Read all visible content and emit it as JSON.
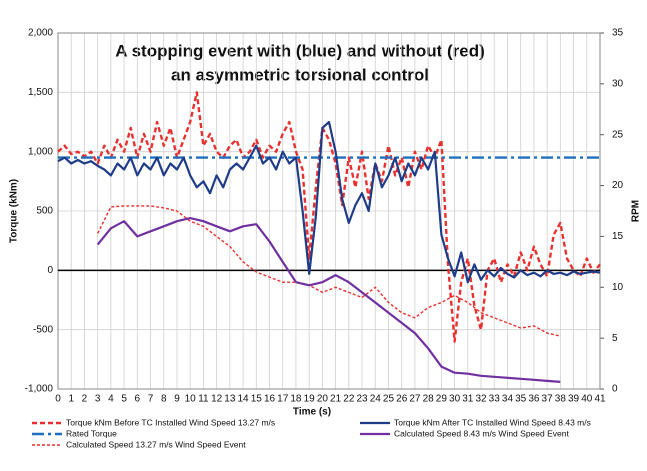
{
  "chart_data": {
    "type": "line",
    "title": [
      "A stopping event with (blue) and without (red)",
      "an asymmetric torsional control"
    ],
    "x_label": "Time (s)",
    "y_label": "Torque (kNm)",
    "y2_label": "RPM",
    "xlim": [
      0,
      41
    ],
    "xticks": [
      0,
      1,
      2,
      3,
      4,
      5,
      6,
      7,
      8,
      9,
      10,
      11,
      12,
      13,
      14,
      15,
      16,
      17,
      18,
      19,
      20,
      21,
      22,
      23,
      24,
      25,
      26,
      27,
      28,
      29,
      30,
      31,
      32,
      33,
      34,
      35,
      36,
      37,
      38,
      39,
      40,
      41
    ],
    "ylim": [
      -1000,
      2000
    ],
    "yticks": [
      {
        "value": -1000,
        "label": "-1,000"
      },
      -500,
      0,
      500,
      {
        "value": 1000,
        "label": "1,000"
      },
      {
        "value": 1500,
        "label": "1,500"
      },
      {
        "value": 2000,
        "label": "2,000"
      }
    ],
    "y2lim": [
      0,
      35
    ],
    "y2ticks": [
      0,
      5,
      10,
      15,
      20,
      25,
      30,
      35
    ],
    "grid": true,
    "series": [
      {
        "name": "Torque kNm Before TC Installed Wind Speed 13.27 m/s",
        "color": "#e8312f",
        "style": "dashed",
        "axis": "y",
        "x": [
          0,
          0.5,
          1,
          1.5,
          2,
          2.5,
          3,
          3.5,
          4,
          4.5,
          5,
          5.5,
          6,
          6.5,
          7,
          7.5,
          8,
          8.5,
          9,
          9.5,
          10,
          10.5,
          11,
          11.5,
          12,
          12.5,
          13,
          13.5,
          14,
          14.5,
          15,
          15.5,
          16,
          16.5,
          17,
          17.5,
          18,
          18.5,
          19,
          19.5,
          20,
          20.5,
          21,
          21.5,
          22,
          22.5,
          23,
          23.5,
          24,
          24.5,
          25,
          25.5,
          26,
          26.5,
          27,
          27.5,
          28,
          28.5,
          29,
          29.5,
          30,
          30.5,
          31,
          31.5,
          32,
          32.5,
          33,
          33.5,
          34,
          34.5,
          35,
          35.5,
          36,
          36.5,
          37,
          37.5,
          38,
          38.5,
          39,
          39.5,
          40,
          40.5,
          41
        ],
        "values": [
          1000,
          1050,
          980,
          1000,
          960,
          1000,
          900,
          1050,
          950,
          1100,
          1000,
          1200,
          950,
          1150,
          1000,
          1250,
          1050,
          1200,
          950,
          1100,
          1250,
          1500,
          1050,
          1150,
          1000,
          950,
          1050,
          1100,
          950,
          1000,
          1100,
          950,
          1050,
          1000,
          1150,
          1250,
          1000,
          850,
          100,
          700,
          1200,
          1100,
          900,
          550,
          950,
          700,
          1000,
          600,
          900,
          750,
          1050,
          800,
          950,
          700,
          1000,
          850,
          1050,
          950,
          1100,
          50,
          -600,
          -100,
          100,
          -300,
          -500,
          0,
          100,
          -100,
          50,
          -50,
          150,
          0,
          200,
          50,
          -50,
          300,
          400,
          100,
          0,
          -50,
          100,
          -20,
          50
        ]
      },
      {
        "name": "Rated Torque",
        "color": "#1f6fbf",
        "style": "dashdot",
        "axis": "y",
        "x": [
          0,
          41
        ],
        "values": [
          950,
          950
        ]
      },
      {
        "name": "Calculated Speed 13.27 m/s Wind Speed Event",
        "color": "#e8312f",
        "style": "thin",
        "axis": "y2",
        "x": [
          3,
          4,
          5,
          6,
          7,
          8,
          9,
          10,
          11,
          12,
          13,
          14,
          15,
          16,
          17,
          18,
          19,
          20,
          21,
          22,
          23,
          24,
          25,
          26,
          27,
          28,
          29,
          30,
          31,
          32,
          33,
          34,
          35,
          36,
          37,
          38
        ],
        "values": [
          15.3,
          17.9,
          18,
          18,
          18,
          17.8,
          17.5,
          16.5,
          16,
          15,
          14,
          12.5,
          11.5,
          11,
          10.5,
          10.5,
          10.2,
          9.5,
          10,
          9.5,
          9,
          10,
          8.5,
          7.5,
          7,
          8,
          8.5,
          9.2,
          8.5,
          7.5,
          7,
          6.5,
          6,
          6.2,
          5.5,
          5.2
        ]
      },
      {
        "name": "Torque kNm After TC Installed Wind Speed 8.43 m/s",
        "color": "#1f3c88",
        "style": "solid",
        "axis": "y",
        "x": [
          0,
          0.5,
          1,
          1.5,
          2,
          2.5,
          3,
          3.5,
          4,
          4.5,
          5,
          5.5,
          6,
          6.5,
          7,
          7.5,
          8,
          8.5,
          9,
          9.5,
          10,
          10.5,
          11,
          11.5,
          12,
          12.5,
          13,
          13.5,
          14,
          14.5,
          15,
          15.5,
          16,
          16.5,
          17,
          17.5,
          18,
          18.5,
          19,
          19.5,
          20,
          20.5,
          21,
          21.5,
          22,
          22.5,
          23,
          23.5,
          24,
          24.5,
          25,
          25.5,
          26,
          26.5,
          27,
          27.5,
          28,
          28.5,
          29,
          29.5,
          30,
          30.5,
          31,
          31.5,
          32,
          32.5,
          33,
          33.5,
          34,
          34.5,
          35,
          35.5,
          36,
          36.5,
          37,
          37.5,
          38,
          38.5,
          39,
          39.5,
          40,
          40.5,
          41
        ],
        "values": [
          920,
          950,
          900,
          930,
          900,
          920,
          880,
          850,
          800,
          900,
          850,
          950,
          800,
          900,
          850,
          950,
          800,
          900,
          850,
          950,
          800,
          700,
          750,
          650,
          800,
          700,
          850,
          900,
          850,
          950,
          1050,
          900,
          950,
          850,
          1000,
          900,
          950,
          500,
          -30,
          450,
          1200,
          1250,
          1000,
          600,
          400,
          550,
          650,
          500,
          900,
          700,
          800,
          950,
          750,
          900,
          800,
          950,
          850,
          1000,
          300,
          100,
          -50,
          150,
          -100,
          50,
          -80,
          0,
          -50,
          20,
          -30,
          -60,
          0,
          -40,
          -20,
          -50,
          0,
          -30,
          -20,
          -40,
          -10,
          -30,
          -20,
          -10,
          -20
        ]
      },
      {
        "name": "Calculated Speed 8.43 m/s Wind Speed Event",
        "color": "#7030a0",
        "style": "solid",
        "axis": "y2",
        "x": [
          3,
          4,
          5,
          6,
          7,
          8,
          9,
          10,
          11,
          12,
          13,
          14,
          15,
          16,
          17,
          18,
          19,
          20,
          21,
          22,
          23,
          24,
          25,
          26,
          27,
          28,
          29,
          30,
          31,
          32,
          33,
          34,
          35,
          36,
          37,
          38
        ],
        "values": [
          14.2,
          15.8,
          16.5,
          15,
          15.5,
          16,
          16.5,
          16.8,
          16.5,
          16,
          15.5,
          16,
          16.2,
          14.5,
          12.5,
          10.5,
          10.2,
          10.5,
          11.2,
          10.5,
          9.5,
          8.5,
          7.5,
          6.5,
          5.5,
          4,
          2.2,
          1.6,
          1.5,
          1.3,
          1.2,
          1.1,
          1,
          0.9,
          0.8,
          0.7
        ]
      }
    ]
  }
}
